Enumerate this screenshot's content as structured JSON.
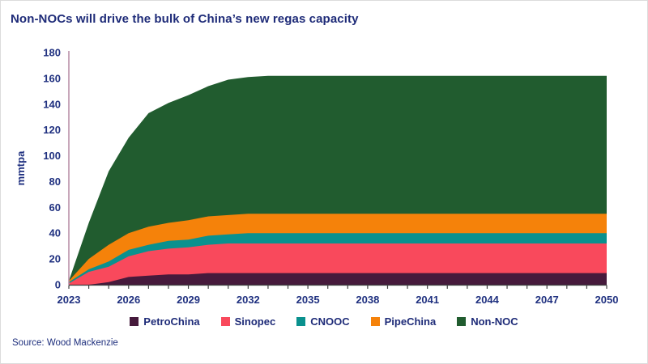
{
  "title": "Non-NOCs will drive the bulk of China’s new regas capacity",
  "source": "Source: Wood Mackenzie",
  "colors": {
    "title_text": "#1e2b78",
    "axis_text": "#203180",
    "y_axis_line": "#b58aa3",
    "x_axis_line": "#3f3f3f",
    "background": "#ffffff"
  },
  "chart_data": {
    "type": "area",
    "stacked": true,
    "title": "Non-NOCs will drive the bulk of China’s new regas capacity",
    "xlabel": "",
    "ylabel": "mmtpa",
    "ylim": [
      0,
      180
    ],
    "y_ticks": [
      0,
      20,
      40,
      60,
      80,
      100,
      120,
      140,
      160,
      180
    ],
    "x_tick_labels": [
      2023,
      2026,
      2029,
      2032,
      2035,
      2038,
      2041,
      2044,
      2047,
      2050
    ],
    "x": [
      2023,
      2024,
      2025,
      2026,
      2027,
      2028,
      2029,
      2030,
      2031,
      2032,
      2033,
      2034,
      2035,
      2036,
      2037,
      2038,
      2039,
      2040,
      2041,
      2042,
      2043,
      2044,
      2045,
      2046,
      2047,
      2048,
      2049,
      2050
    ],
    "series": [
      {
        "name": "PetroChina",
        "color": "#461a3c",
        "values": [
          0,
          0,
          2,
          6,
          7,
          8,
          8,
          9,
          9,
          9,
          9,
          9,
          9,
          9,
          9,
          9,
          9,
          9,
          9,
          9,
          9,
          9,
          9,
          9,
          9,
          9,
          9,
          9
        ]
      },
      {
        "name": "Sinopec",
        "color": "#f9495c",
        "values": [
          1,
          10,
          12,
          16,
          19,
          20,
          21,
          22,
          23,
          23,
          23,
          23,
          23,
          23,
          23,
          23,
          23,
          23,
          23,
          23,
          23,
          23,
          23,
          23,
          23,
          23,
          23,
          23
        ]
      },
      {
        "name": "CNOOC",
        "color": "#0a918e",
        "values": [
          1,
          2,
          4,
          5,
          5,
          6,
          6,
          7,
          7,
          8,
          8,
          8,
          8,
          8,
          8,
          8,
          8,
          8,
          8,
          8,
          8,
          8,
          8,
          8,
          8,
          8,
          8,
          8
        ]
      },
      {
        "name": "PipeChina",
        "color": "#f5820a",
        "values": [
          1,
          8,
          13,
          13,
          14,
          14,
          15,
          15,
          15,
          15,
          15,
          15,
          15,
          15,
          15,
          15,
          15,
          15,
          15,
          15,
          15,
          15,
          15,
          15,
          15,
          15,
          15,
          15
        ]
      },
      {
        "name": "Non-NOC",
        "color": "#215c2f",
        "values": [
          0,
          28,
          57,
          74,
          88,
          93,
          97,
          101,
          105,
          106,
          107,
          107,
          107,
          107,
          107,
          107,
          107,
          107,
          107,
          107,
          107,
          107,
          107,
          107,
          107,
          107,
          107,
          107
        ]
      }
    ],
    "grid": false,
    "legend_position": "bottom"
  }
}
